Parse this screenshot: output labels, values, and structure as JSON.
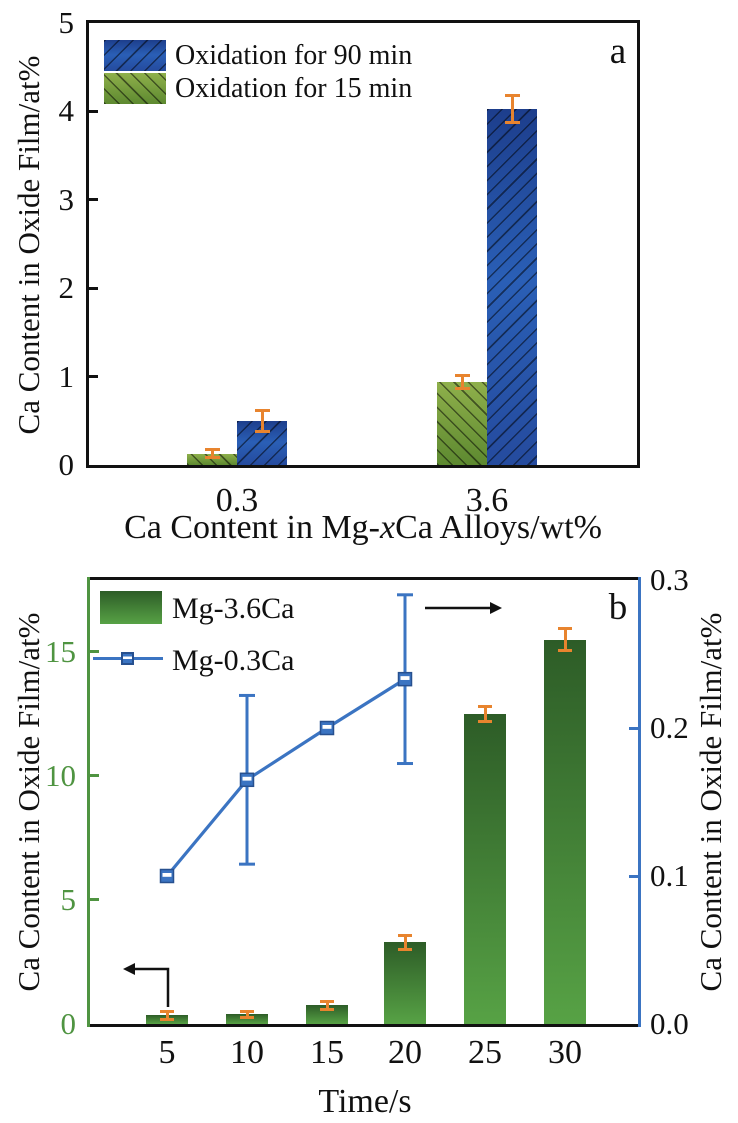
{
  "figure": {
    "panels": [
      "a",
      "b"
    ]
  },
  "chart_data": [
    {
      "type": "bar",
      "panel_label": "a",
      "title": "",
      "categories": [
        "0.3",
        "3.6"
      ],
      "series": [
        {
          "name": "Oxidation for 15 min",
          "values": [
            0.13,
            0.94
          ],
          "errors": [
            0.05,
            0.07
          ],
          "hatch": "\\"
        },
        {
          "name": "Oxidation for 90 min",
          "values": [
            0.5,
            4.03
          ],
          "errors": [
            0.12,
            0.15
          ],
          "hatch": "/"
        }
      ],
      "legend_order_top_to_bottom": [
        "Oxidation for 90 min",
        "Oxidation for 15 min"
      ],
      "legend_position": "top-left",
      "xlabel": {
        "prefix": "Ca Content in Mg-",
        "italic": "x",
        "suffix": "Ca Alloys/wt%"
      },
      "ylabel": "Ca Content in Oxide Film/at%",
      "ylim": [
        0,
        5
      ],
      "yticks": [
        0,
        1,
        2,
        3,
        4,
        5
      ],
      "grid": false,
      "colors": {
        "bar90_dark": "#1d3e8c",
        "bar90_light": "#2a5fb6",
        "bar90_mid": "#254b9e",
        "bar15_light": "#8fb04b",
        "bar15_dark": "#5d8930",
        "error": "#e8842e",
        "frame": "#111111"
      }
    },
    {
      "type": "bar+line",
      "panel_label": "b",
      "title": "",
      "x": [
        5,
        10,
        15,
        20,
        25,
        30
      ],
      "bar_series": {
        "name": "Mg-3.6Ca",
        "axis": "left",
        "values": [
          0.35,
          0.4,
          0.75,
          3.3,
          12.5,
          15.5
        ],
        "errors": [
          0.15,
          0.12,
          0.15,
          0.28,
          0.3,
          0.45
        ]
      },
      "line_series": {
        "name": "Mg-0.3Ca",
        "axis": "right",
        "x": [
          5,
          10,
          15,
          20
        ],
        "values": [
          0.1,
          0.165,
          0.2,
          0.233
        ],
        "errors": [
          0,
          0.057,
          0,
          0.057
        ],
        "marker": "square-with-white-stripe"
      },
      "xlabel": "Time/s",
      "ylabel_left": "Ca Content in Oxide Film/at%",
      "ylabel_right": "Ca Content in Oxide Film/at%",
      "ylim_left": [
        0,
        17.9
      ],
      "yticks_left": [
        0,
        5,
        10,
        15
      ],
      "ylim_right": [
        0,
        0.3
      ],
      "yticks_right": [
        0,
        0.1,
        0.2,
        0.3
      ],
      "ytick_labels_right": [
        "0.0",
        "0.1",
        "0.2",
        "0.3"
      ],
      "legend_position": "top-left",
      "grid": false,
      "annotations": {
        "left_arrow": "bars read on left axis",
        "right_arrow": "line reads on right axis"
      },
      "colors": {
        "bar_top": "#2d5c27",
        "bar_bottom": "#57a245",
        "line": "#3b74c2",
        "line_marker_border": "#27508f",
        "left_axis": "#4f9441",
        "right_axis": "#3b74c2",
        "error": "#e8842e",
        "frame": "#111111"
      }
    }
  ]
}
